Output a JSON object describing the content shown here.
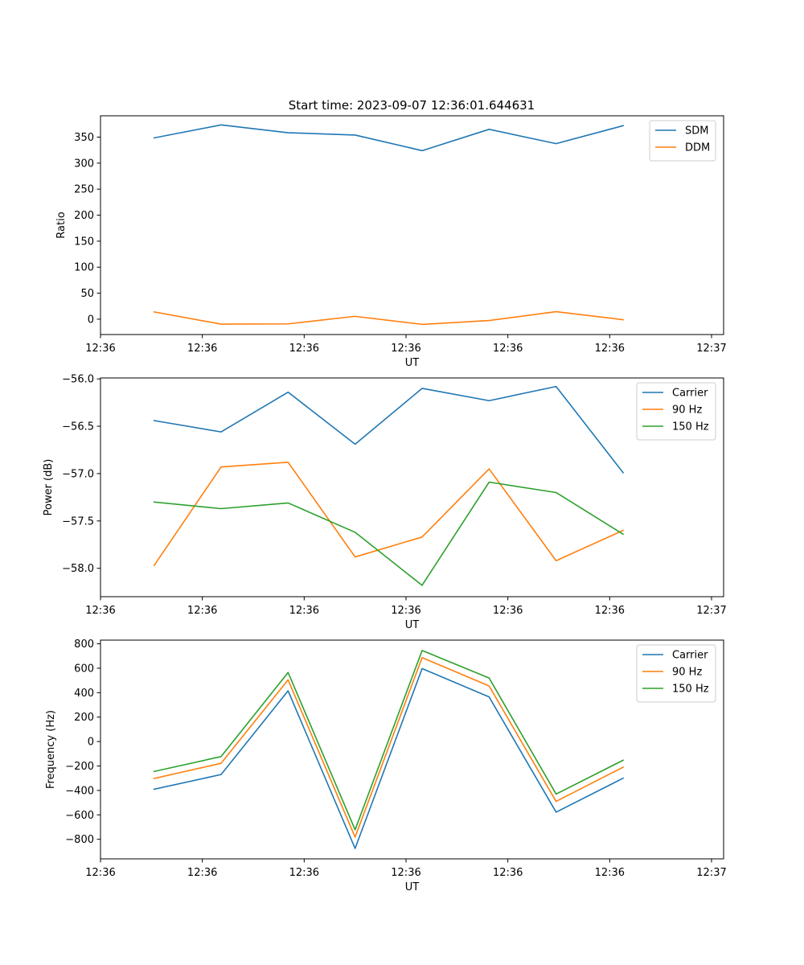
{
  "figure_title": "Start time: 2023-09-07 12:36:01.644631",
  "chart_data": [
    {
      "type": "line",
      "title": "Start time: 2023-09-07 12:36:01.644631",
      "xlabel": "UT",
      "ylabel": "Ratio",
      "x": [
        1,
        2,
        3,
        4,
        5,
        6,
        7,
        8
      ],
      "xlim": [
        0.2,
        9.5
      ],
      "ylim": [
        -29.5,
        391
      ],
      "xtick_values": [
        0.2,
        1.72,
        3.24,
        4.76,
        6.28,
        7.8,
        9.32
      ],
      "xtick_labels": [
        "12:36",
        "12:36",
        "12:36",
        "12:36",
        "12:36",
        "12:36",
        "12:37"
      ],
      "ytick_values": [
        0,
        50,
        100,
        150,
        200,
        250,
        300,
        350
      ],
      "ytick_labels": [
        "0",
        "50",
        "100",
        "150",
        "200",
        "250",
        "300",
        "350"
      ],
      "legend_position": "upper right",
      "series": [
        {
          "name": "SDM",
          "color": "#1f77b4",
          "values": [
            348.5,
            373.5,
            358.5,
            354,
            324,
            365,
            337.5,
            372
          ]
        },
        {
          "name": "DDM",
          "color": "#ff7f0e",
          "values": [
            14,
            -9.5,
            -9,
            5.5,
            -10,
            -2.5,
            14.5,
            -1
          ]
        }
      ]
    },
    {
      "type": "line",
      "xlabel": "UT",
      "ylabel": "Power (dB)",
      "x": [
        1,
        2,
        3,
        4,
        5,
        6,
        7,
        8
      ],
      "xlim": [
        0.2,
        9.5
      ],
      "ylim": [
        -58.3,
        -55.99
      ],
      "xtick_values": [
        0.2,
        1.72,
        3.24,
        4.76,
        6.28,
        7.8,
        9.32
      ],
      "xtick_labels": [
        "12:36",
        "12:36",
        "12:36",
        "12:36",
        "12:36",
        "12:36",
        "12:37"
      ],
      "ytick_values": [
        -58.0,
        -57.5,
        -57.0,
        -56.5,
        -56.0
      ],
      "ytick_labels": [
        "−58.0",
        "−57.5",
        "−57.0",
        "−56.5",
        "−56.0"
      ],
      "legend_position": "upper right",
      "series": [
        {
          "name": "Carrier",
          "color": "#1f77b4",
          "values": [
            -56.44,
            -56.56,
            -56.14,
            -56.69,
            -56.1,
            -56.23,
            -56.08,
            -56.99
          ]
        },
        {
          "name": "90 Hz",
          "color": "#ff7f0e",
          "values": [
            -57.97,
            -56.93,
            -56.88,
            -57.88,
            -57.67,
            -56.95,
            -57.92,
            -57.6
          ]
        },
        {
          "name": "150 Hz",
          "color": "#2ca02c",
          "values": [
            -57.3,
            -57.37,
            -57.31,
            -57.62,
            -58.18,
            -57.09,
            -57.2,
            -57.64
          ]
        }
      ]
    },
    {
      "type": "line",
      "xlabel": "UT",
      "ylabel": "Frequency (Hz)",
      "x": [
        1,
        2,
        3,
        4,
        5,
        6,
        7,
        8
      ],
      "xlim": [
        0.2,
        9.5
      ],
      "ylim": [
        -960,
        830
      ],
      "xtick_values": [
        0.2,
        1.72,
        3.24,
        4.76,
        6.28,
        7.8,
        9.32
      ],
      "xtick_labels": [
        "12:36",
        "12:36",
        "12:36",
        "12:36",
        "12:36",
        "12:36",
        "12:37"
      ],
      "ytick_values": [
        -800,
        -600,
        -400,
        -200,
        0,
        200,
        400,
        600,
        800
      ],
      "ytick_labels": [
        "−800",
        "−600",
        "−400",
        "−200",
        "0",
        "200",
        "400",
        "600",
        "800"
      ],
      "legend_position": "upper right",
      "series": [
        {
          "name": "Carrier",
          "color": "#1f77b4",
          "values": [
            -390,
            -270,
            415,
            -875,
            597,
            365,
            -578,
            -300
          ]
        },
        {
          "name": "90 Hz",
          "color": "#ff7f0e",
          "values": [
            -302,
            -178,
            505,
            -782,
            687,
            455,
            -490,
            -210
          ]
        },
        {
          "name": "150 Hz",
          "color": "#2ca02c",
          "values": [
            -245,
            -123,
            565,
            -722,
            745,
            520,
            -430,
            -153
          ]
        }
      ]
    }
  ]
}
